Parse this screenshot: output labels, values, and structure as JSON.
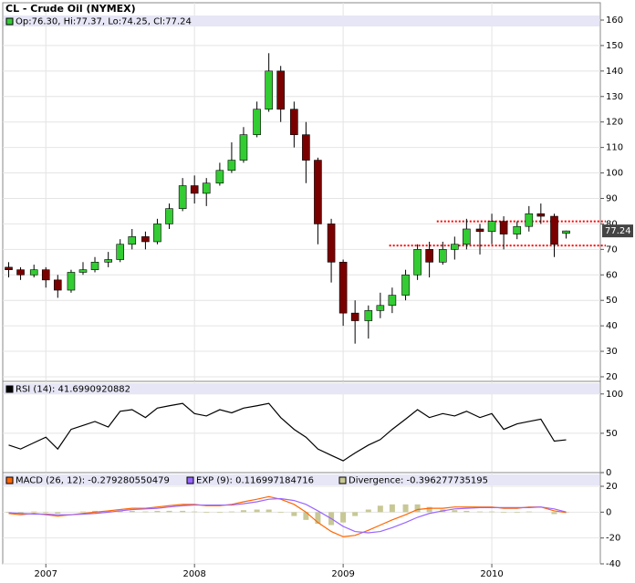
{
  "chart_data": [
    {
      "type": "candlestick",
      "title": "CL - Crude Oil (NYMEX)",
      "legend_text": "Op:76.30, Hi:77.37, Lo:74.25, Cl:77.24",
      "up_color": "#33cc33",
      "down_color": "#7a0000",
      "x": [
        2006.75,
        2006.83,
        2006.92,
        2007.0,
        2007.08,
        2007.17,
        2007.25,
        2007.33,
        2007.42,
        2007.5,
        2007.58,
        2007.67,
        2007.75,
        2007.83,
        2007.92,
        2008.0,
        2008.08,
        2008.17,
        2008.25,
        2008.33,
        2008.42,
        2008.5,
        2008.58,
        2008.67,
        2008.75,
        2008.83,
        2008.92,
        2009.0,
        2009.08,
        2009.17,
        2009.25,
        2009.33,
        2009.42,
        2009.5,
        2009.58,
        2009.67,
        2009.75,
        2009.83,
        2009.92,
        2010.0,
        2010.08,
        2010.17,
        2010.25,
        2010.33,
        2010.42,
        2010.5
      ],
      "open": [
        63,
        62,
        60,
        62,
        58,
        54,
        61,
        62,
        65,
        66,
        72,
        75,
        73,
        80,
        86,
        95,
        92,
        96,
        101,
        105,
        115,
        125,
        140,
        125,
        115,
        105,
        80,
        65,
        45,
        42,
        46,
        48,
        52,
        60,
        70,
        65,
        70,
        72,
        78,
        77,
        81,
        76,
        79,
        84,
        83,
        76.3
      ],
      "high": [
        65,
        63,
        64,
        63,
        60,
        62,
        65,
        67,
        69,
        74,
        78,
        77,
        82,
        88,
        98,
        99,
        98,
        104,
        112,
        118,
        128,
        147,
        142,
        128,
        120,
        106,
        82,
        66,
        50,
        48,
        53,
        55,
        62,
        72,
        73,
        73,
        75,
        82,
        80,
        84,
        83,
        81,
        87,
        88,
        84,
        77.37
      ],
      "low": [
        59,
        58,
        59,
        55,
        51,
        53,
        60,
        61,
        63,
        65,
        70,
        70,
        72,
        78,
        85,
        88,
        87,
        95,
        100,
        104,
        114,
        124,
        120,
        110,
        96,
        72,
        57,
        40,
        33,
        35,
        43,
        45,
        50,
        58,
        59,
        64,
        66,
        70,
        68,
        72,
        70,
        74,
        77,
        80,
        67,
        74.25
      ],
      "close": [
        62,
        60,
        62,
        58,
        54,
        61,
        62,
        65,
        66,
        72,
        75,
        73,
        80,
        86,
        95,
        92,
        96,
        101,
        105,
        115,
        125,
        140,
        125,
        115,
        105,
        80,
        65,
        45,
        42,
        46,
        48,
        52,
        60,
        70,
        65,
        70,
        72,
        78,
        77,
        81,
        76,
        79,
        84,
        83,
        72,
        77.24
      ],
      "last_price": 77.24,
      "reference_lines": [
        {
          "value": 81,
          "x_start": 2009.63,
          "color": "#ff0000"
        },
        {
          "value": 71.5,
          "x_start": 2009.31,
          "color": "#ff0000"
        }
      ],
      "xlim": [
        2006.71,
        2010.73
      ],
      "xticks": [
        2007,
        2008,
        2009,
        2010
      ],
      "ylim": [
        18.2,
        166.8
      ],
      "yticks": [
        20,
        30,
        40,
        50,
        60,
        70,
        80,
        90,
        100,
        110,
        120,
        130,
        140,
        150,
        160
      ],
      "grid": true
    },
    {
      "type": "line",
      "series": [
        {
          "name": "RSI (14): 41.6990920882",
          "color": "#000000",
          "values": [
            35,
            30,
            38,
            45,
            30,
            55,
            60,
            65,
            58,
            78,
            80,
            70,
            82,
            85,
            88,
            75,
            72,
            80,
            76,
            82,
            85,
            88,
            70,
            55,
            45,
            30,
            22,
            15,
            25,
            35,
            42,
            55,
            68,
            80,
            70,
            75,
            72,
            78,
            70,
            75,
            55,
            62,
            65,
            68,
            40,
            41.699
          ]
        }
      ],
      "ylim": [
        0,
        116
      ],
      "yticks": [
        0,
        50,
        100
      ],
      "grid": true
    },
    {
      "type": "macd",
      "series": [
        {
          "name": "MACD (26, 12): -0.279280550479",
          "color": "#ff6600",
          "values": [
            -1,
            -2,
            -1,
            -2,
            -3,
            -2,
            -1,
            0,
            1,
            2,
            3,
            3,
            4,
            5,
            6,
            6,
            5,
            5,
            6,
            8,
            10,
            12,
            10,
            6,
            0,
            -8,
            -15,
            -19,
            -18,
            -14,
            -10,
            -6,
            -2,
            2,
            3,
            3,
            4,
            4,
            4,
            4,
            3,
            3,
            4,
            4,
            1,
            -0.28
          ]
        },
        {
          "name": "EXP (9): 0.116997184716",
          "color": "#9966ff",
          "values": [
            -0.5,
            -1,
            -1.5,
            -1.5,
            -2,
            -2,
            -1.5,
            -1,
            0,
            1,
            2,
            2.5,
            3,
            4,
            5,
            5.5,
            5.5,
            5.5,
            5.5,
            6.5,
            8,
            10,
            10.5,
            9,
            6,
            1,
            -5,
            -11,
            -15,
            -16,
            -15,
            -12,
            -8,
            -4,
            -1,
            1,
            2.5,
            3,
            3.5,
            3.5,
            3.5,
            3.5,
            3.5,
            4,
            2.5,
            0.117
          ]
        },
        {
          "name": "Divergence: -0.396277735195",
          "color": "#c8c896",
          "style": "bars",
          "values": [
            -0.5,
            -1,
            0.5,
            -0.5,
            -1,
            0,
            0.5,
            1,
            1,
            1,
            1,
            0.5,
            1,
            1,
            1,
            0.5,
            -0.5,
            -0.5,
            0.5,
            1.5,
            2,
            2,
            -0.5,
            -3,
            -6,
            -9,
            -10,
            -8,
            -3,
            2,
            5,
            6,
            6,
            6,
            4,
            2,
            1.5,
            1,
            0.5,
            0.5,
            -0.5,
            -0.5,
            0.5,
            0,
            -1.5,
            -0.396
          ]
        }
      ],
      "ylim": [
        -40,
        30.6
      ],
      "yticks": [
        -40,
        -20,
        0,
        20
      ],
      "grid": true
    }
  ]
}
